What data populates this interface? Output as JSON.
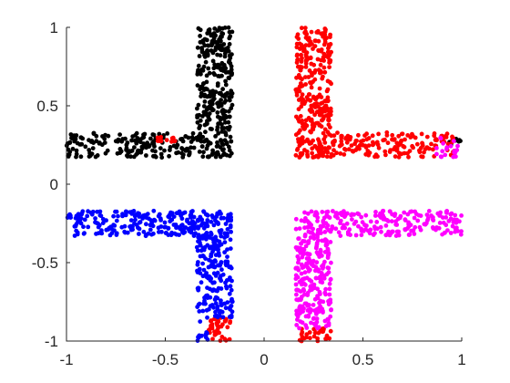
{
  "chart_data": {
    "type": "scatter",
    "title": "",
    "xlabel": "",
    "ylabel": "",
    "xlim": [
      -1,
      1
    ],
    "ylim": [
      -1,
      1
    ],
    "xticks": [
      -1,
      -0.5,
      0,
      0.5,
      1
    ],
    "yticks": [
      -1,
      -0.5,
      0,
      0.5,
      1
    ],
    "xtick_labels": [
      "-1",
      "-0.5",
      "0",
      "0.5",
      "1"
    ],
    "ytick_labels": [
      "-1",
      "-0.5",
      "0",
      "0.5",
      "1"
    ],
    "grid": false,
    "legend": "none",
    "marker_size": 2.4,
    "series": [
      {
        "color": "#000000",
        "clusters": [
          {
            "x": [
              -0.34,
              -0.16
            ],
            "y": [
              0.17,
              1.0
            ],
            "n": 330
          },
          {
            "x": [
              -1.0,
              -0.34
            ],
            "y": [
              0.17,
              0.33
            ],
            "n": 170
          },
          {
            "x": [
              0.93,
              1.0
            ],
            "y": [
              0.25,
              0.3
            ],
            "n": 10
          }
        ]
      },
      {
        "color": "#ff0000",
        "clusters": [
          {
            "x": [
              0.16,
              0.34
            ],
            "y": [
              0.17,
              1.0
            ],
            "n": 330
          },
          {
            "x": [
              0.34,
              0.97
            ],
            "y": [
              0.17,
              0.33
            ],
            "n": 160
          },
          {
            "x": [
              -0.55,
              -0.44
            ],
            "y": [
              0.27,
              0.32
            ],
            "n": 12
          },
          {
            "x": [
              -0.28,
              -0.17
            ],
            "y": [
              -1.0,
              -0.85
            ],
            "n": 40
          },
          {
            "x": [
              0.18,
              0.34
            ],
            "y": [
              -1.0,
              -0.92
            ],
            "n": 30
          }
        ]
      },
      {
        "color": "#0000ff",
        "clusters": [
          {
            "x": [
              -1.0,
              -0.34
            ],
            "y": [
              -0.33,
              -0.17
            ],
            "n": 200
          },
          {
            "x": [
              -0.34,
              -0.16
            ],
            "y": [
              -0.85,
              -0.17
            ],
            "n": 250
          },
          {
            "x": [
              -0.34,
              -0.28
            ],
            "y": [
              -1.0,
              -0.85
            ],
            "n": 12
          }
        ]
      },
      {
        "color": "#ff00ff",
        "clusters": [
          {
            "x": [
              0.16,
              1.0
            ],
            "y": [
              -0.33,
              -0.17
            ],
            "n": 240
          },
          {
            "x": [
              0.16,
              0.34
            ],
            "y": [
              -0.92,
              -0.33
            ],
            "n": 250
          },
          {
            "x": [
              0.87,
              0.98
            ],
            "y": [
              0.17,
              0.3
            ],
            "n": 20
          }
        ]
      }
    ]
  }
}
